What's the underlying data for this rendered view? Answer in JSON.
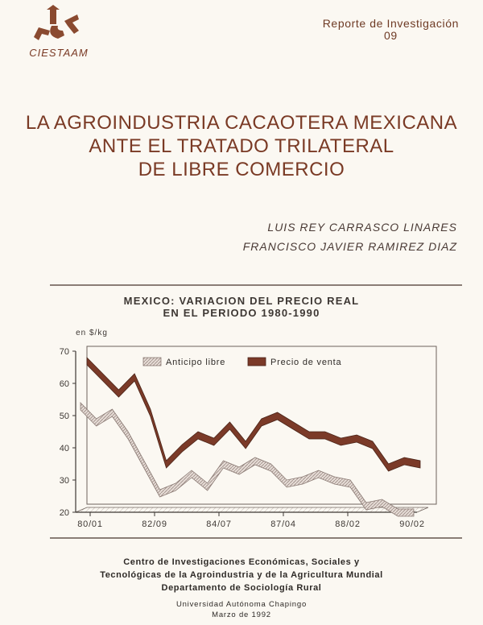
{
  "header": {
    "logo_text": "CIESTAAM",
    "series_label": "Reporte de Investigación",
    "series_number": "09"
  },
  "title": {
    "line1": "LA AGROINDUSTRIA CACAOTERA MEXICANA",
    "line2": "ANTE EL TRATADO TRILATERAL",
    "line3": "DE LIBRE COMERCIO"
  },
  "authors": [
    "LUIS REY CARRASCO LINARES",
    "FRANCISCO JAVIER RAMIREZ DIAZ"
  ],
  "chart_data": {
    "type": "area",
    "title": "MEXICO: VARIACION DEL PRECIO REAL",
    "subtitle": "EN EL PERIODO 1980-1990",
    "ylabel": "en $/kg",
    "ylim": [
      20,
      70
    ],
    "yticks": [
      20,
      30,
      40,
      50,
      60,
      70
    ],
    "xticklabels": [
      "80/01",
      "82/09",
      "84/07",
      "87/04",
      "88/02",
      "90/02"
    ],
    "series": [
      {
        "name": "Anticipo libre",
        "color": "#c9b8b0",
        "values": [
          54,
          49,
          52,
          45,
          36,
          27,
          29,
          33,
          29,
          36,
          34,
          37,
          35,
          30,
          31,
          33,
          31,
          30,
          23,
          24,
          21,
          21
        ]
      },
      {
        "name": "Precio de venta",
        "color": "#7b3a28",
        "values": [
          66,
          61,
          56,
          61,
          50,
          34,
          39,
          43,
          41,
          46,
          40,
          47,
          49,
          46,
          43,
          43,
          41,
          42,
          40,
          33,
          35,
          34
        ]
      }
    ],
    "legend": "top",
    "grid": false
  },
  "footer": {
    "line1": "Centro de Investigaciones Económicas, Sociales y",
    "line2": "Tecnológicas de la Agroindustria y de la Agricultura Mundial",
    "line3": "Departamento de Sociología Rural",
    "line4": "Universidad Autónoma Chapingo",
    "line5": "Marzo de 1992"
  },
  "colors": {
    "brand": "#7a3a25",
    "text": "#2e2a27"
  }
}
